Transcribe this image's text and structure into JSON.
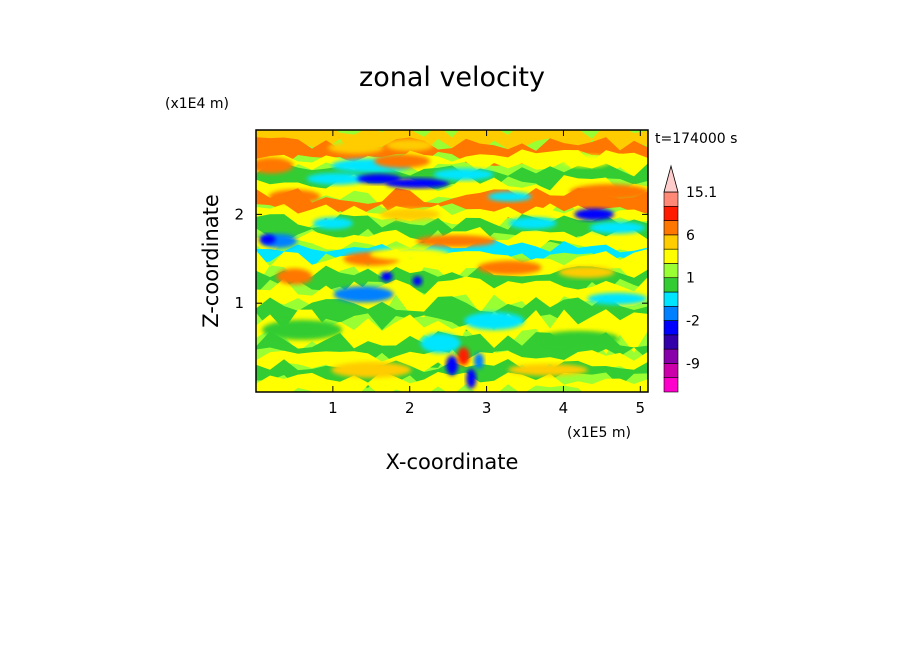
{
  "chart_data": {
    "type": "heatmap",
    "title": "zonal velocity",
    "xlabel": "X-coordinate",
    "ylabel": "Z-coordinate",
    "x_unit": "(x1E5 m)",
    "y_unit": "(x1E4 m)",
    "time_label": "t=174000 s",
    "xlim": [
      0,
      5.1
    ],
    "ylim": [
      0,
      2.95
    ],
    "x_ticks": [
      "1",
      "2",
      "3",
      "4",
      "5"
    ],
    "x_tick_values": [
      1,
      2,
      3,
      4,
      5
    ],
    "y_ticks": [
      "1",
      "2"
    ],
    "y_tick_values": [
      1,
      2
    ],
    "colorbar": {
      "labels": [
        "15.1",
        "6",
        "1",
        "-2",
        "-9"
      ],
      "label_values": [
        15.1,
        6,
        1,
        -2,
        -9
      ],
      "levels": [
        -20,
        -12,
        -9,
        -6,
        -4,
        -2,
        -1,
        0,
        1,
        2,
        4,
        6,
        9,
        12,
        15.1
      ],
      "colors": [
        "#ff00cc",
        "#cc00aa",
        "#8800aa",
        "#3300aa",
        "#0000ff",
        "#0080ff",
        "#00e5ff",
        "#33cc33",
        "#99ff33",
        "#ffff00",
        "#ffcc00",
        "#ff7700",
        "#ff1a00",
        "#ff8877",
        "#ffcccc"
      ],
      "extend": "max"
    },
    "field_description": "banded zonal velocity field: warm (orange) bands near Z=1.7-2.5, blue jets near Z=1.7-2.6, mixed green/yellow elsewhere, strong small-scale structure near X=2.4-3.0 low levels"
  }
}
